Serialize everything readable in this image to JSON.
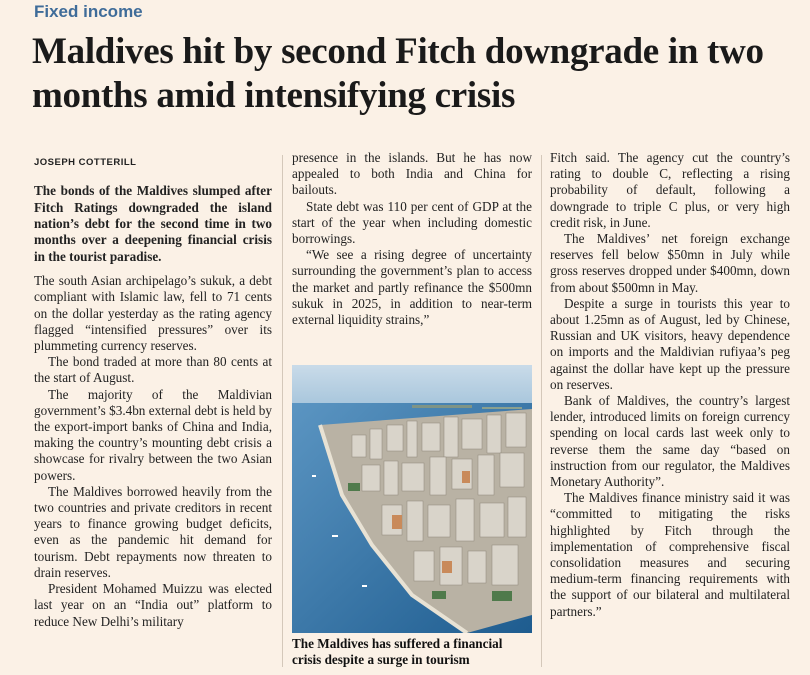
{
  "section": "Fixed income",
  "headline": "Maldives hit by second Fitch downgrade in two months amid intensifying crisis",
  "byline": "JOSEPH COTTERILL",
  "standfirst": "The bonds of the Maldives slumped after Fitch Ratings downgraded the island nation’s debt for the second time in two months over a deepening financial crisis in the tourist paradise.",
  "col1_paragraphs": [
    "The south Asian archipelago’s sukuk, a debt compliant with Islamic law, fell to 71 cents on the dollar yesterday as the rating agency flagged “intensified pressures” over its plummeting currency reserves.",
    "The bond traded at more than 80 cents at the start of August.",
    "The majority of the Maldivian government’s $3.4bn external debt is held by the export-import banks of China and India, making the country’s mounting debt crisis a showcase for rivalry between the two Asian powers.",
    "The Maldives borrowed heavily from the two countries and private creditors in recent years to finance growing budget deficits, even as the pandemic hit demand for tourism. Debt repayments now threaten to drain reserves.",
    "President Mohamed Muizzu was elected last year on an “India out” platform to reduce New Delhi’s military"
  ],
  "col2_paragraphs": [
    "presence in the islands. But he has now appealed to both India and China for bailouts.",
    "State debt was 110 per cent of GDP at the start of the year when including domestic borrowings.",
    "“We see a rising degree of uncertainty surrounding the government’s plan to access the market and partly refinance the $500mn sukuk in 2025, in addition to near-term external liquidity strains,”"
  ],
  "photo_caption": "The Maldives has suffered a financial crisis despite a surge in tourism",
  "col3_paragraphs": [
    "Fitch said. The agency cut the country’s rating to double C, reflecting a rising probability of default, following a downgrade to triple C plus, or very high credit risk, in June.",
    "The Maldives’ net foreign exchange reserves fell below $50mn in July while gross reserves dropped under $400mn, down from about $500mn in May.",
    "Despite a surge in tourists this year to about 1.25mn as of August, led by Chinese, Russian and UK visitors, heavy dependence on imports and the Maldivian rufiyaa’s peg against the dollar have kept up the pressure on reserves.",
    "Bank of Maldives, the country’s largest lender, introduced limits on foreign currency spending on local cards last week only to reverse them the same day “based on instruction from our regulator, the Maldives Monetary Authority”.",
    "The Maldives finance ministry said it was “committed to mitigating the risks highlighted by Fitch through the implementation of comprehensive fiscal consolidation measures and securing medium-term financing requirements with the support of our bilateral and multilateral partners.”"
  ]
}
